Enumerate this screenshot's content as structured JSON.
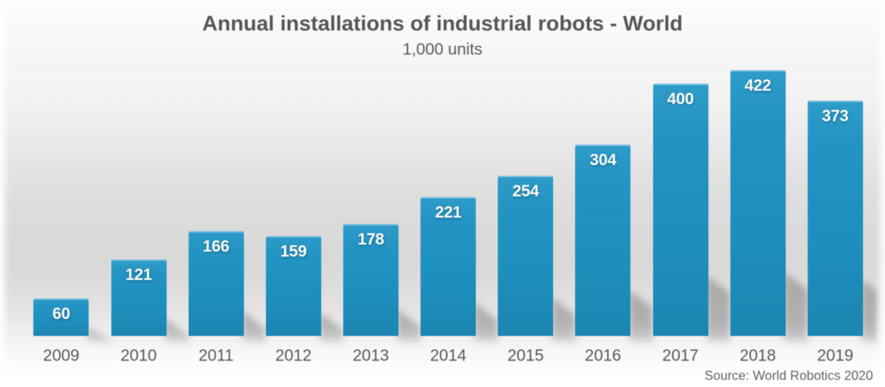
{
  "header": {
    "title": "Annual installations of industrial robots - World",
    "subtitle": "1,000 units"
  },
  "footer": {
    "source": "Source: World Robotics 2020"
  },
  "chart_data": {
    "type": "bar",
    "title": "Annual installations of industrial robots - World",
    "subtitle": "1,000 units",
    "categories": [
      "2009",
      "2010",
      "2011",
      "2012",
      "2013",
      "2014",
      "2015",
      "2016",
      "2017",
      "2018",
      "2019"
    ],
    "values": [
      60,
      121,
      166,
      159,
      178,
      221,
      254,
      304,
      400,
      422,
      373
    ],
    "xlabel": "",
    "ylabel": "1,000 units",
    "ylim": [
      0,
      450
    ],
    "grid": false,
    "legend": false,
    "value_labels": "inside-top",
    "source": "Source: World Robotics 2020",
    "colors": {
      "bar": "#2287B7",
      "bar_top": "#2E95C3",
      "value_label": "#FFFFFF",
      "tick_label": "#58585A",
      "title": "#565658",
      "background_mid": "#E4E3E2",
      "shadow": "#9B9B9B"
    }
  }
}
